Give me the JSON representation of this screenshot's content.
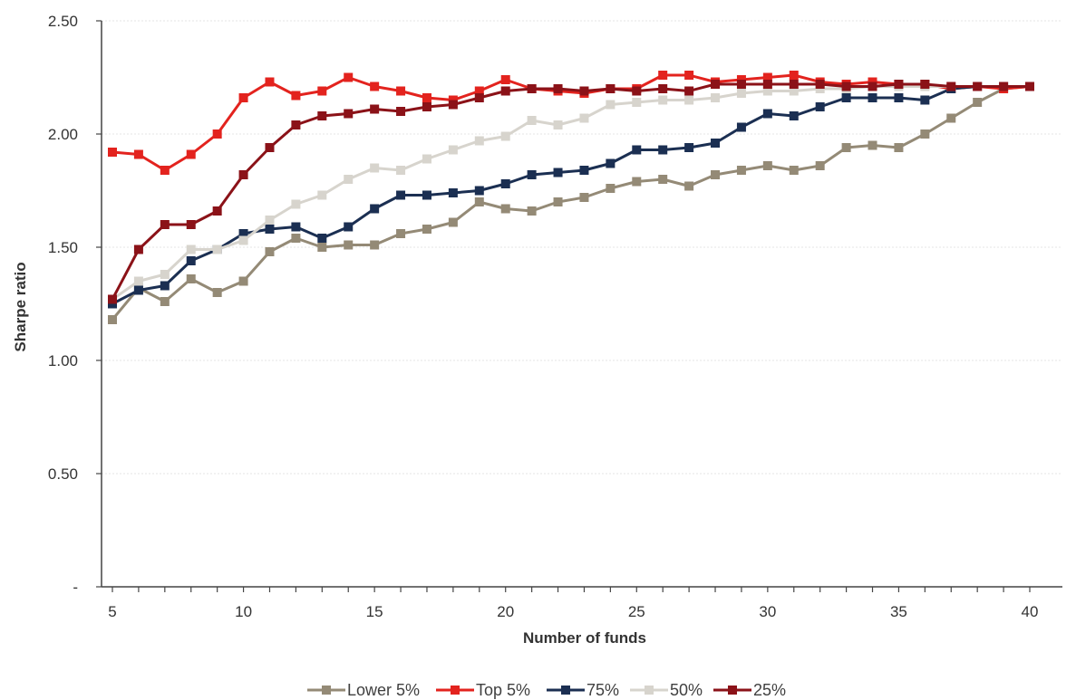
{
  "chart_data": {
    "type": "line",
    "title": "",
    "xlabel": "Number of funds",
    "ylabel": "Sharpe ratio",
    "xlim": [
      5,
      40
    ],
    "ylim": [
      0,
      2.5
    ],
    "x_ticks": [
      5,
      10,
      15,
      20,
      25,
      30,
      35,
      40
    ],
    "x_tick_labels": [
      "5",
      "10",
      "15",
      "20",
      "25",
      "30",
      "35",
      "40"
    ],
    "y_ticks": [
      0,
      0.5,
      1.0,
      1.5,
      2.0,
      2.5
    ],
    "y_tick_labels": [
      "-",
      "0.50",
      "1.00",
      "1.50",
      "2.00",
      "2.50"
    ],
    "grid": true,
    "legend_position": "bottom",
    "x": [
      5,
      6,
      7,
      8,
      9,
      10,
      11,
      12,
      13,
      14,
      15,
      16,
      17,
      18,
      19,
      20,
      21,
      22,
      23,
      24,
      25,
      26,
      27,
      28,
      29,
      30,
      31,
      32,
      33,
      34,
      35,
      36,
      37,
      38,
      39,
      40
    ],
    "series": [
      {
        "name": "Lower 5%",
        "color": "#948a76",
        "values": [
          1.18,
          1.32,
          1.26,
          1.36,
          1.3,
          1.35,
          1.48,
          1.54,
          1.5,
          1.51,
          1.51,
          1.56,
          1.58,
          1.61,
          1.7,
          1.67,
          1.66,
          1.7,
          1.72,
          1.76,
          1.79,
          1.8,
          1.77,
          1.82,
          1.84,
          1.86,
          1.84,
          1.86,
          1.94,
          1.95,
          1.94,
          2.0,
          2.07,
          2.14,
          2.2,
          2.21
        ]
      },
      {
        "name": "Top 5%",
        "color": "#e3231e",
        "values": [
          1.92,
          1.91,
          1.84,
          1.91,
          2.0,
          2.16,
          2.23,
          2.17,
          2.19,
          2.25,
          2.21,
          2.19,
          2.16,
          2.15,
          2.19,
          2.24,
          2.2,
          2.19,
          2.18,
          2.2,
          2.2,
          2.26,
          2.26,
          2.23,
          2.24,
          2.25,
          2.26,
          2.23,
          2.22,
          2.23,
          2.22,
          2.22,
          2.2,
          2.21,
          2.2,
          2.21
        ]
      },
      {
        "name": "75%",
        "color": "#1b2f52",
        "values": [
          1.25,
          1.31,
          1.33,
          1.44,
          1.49,
          1.56,
          1.58,
          1.59,
          1.54,
          1.59,
          1.67,
          1.73,
          1.73,
          1.74,
          1.75,
          1.78,
          1.82,
          1.83,
          1.84,
          1.87,
          1.93,
          1.93,
          1.94,
          1.96,
          2.03,
          2.09,
          2.08,
          2.12,
          2.16,
          2.16,
          2.16,
          2.15,
          2.2,
          2.21,
          2.21,
          2.21
        ]
      },
      {
        "name": "50%",
        "color": "#d7d4cd",
        "values": [
          1.27,
          1.35,
          1.38,
          1.49,
          1.49,
          1.53,
          1.62,
          1.69,
          1.73,
          1.8,
          1.85,
          1.84,
          1.89,
          1.93,
          1.97,
          1.99,
          2.06,
          2.04,
          2.07,
          2.13,
          2.14,
          2.15,
          2.15,
          2.16,
          2.18,
          2.19,
          2.19,
          2.2,
          2.2,
          2.21,
          2.21,
          2.21,
          2.21,
          2.21,
          2.21,
          2.21
        ]
      },
      {
        "name": "25%",
        "color": "#8b1218",
        "values": [
          1.27,
          1.49,
          1.6,
          1.6,
          1.66,
          1.82,
          1.94,
          2.04,
          2.08,
          2.09,
          2.11,
          2.1,
          2.12,
          2.13,
          2.16,
          2.19,
          2.2,
          2.2,
          2.19,
          2.2,
          2.19,
          2.2,
          2.19,
          2.22,
          2.22,
          2.22,
          2.22,
          2.22,
          2.21,
          2.21,
          2.22,
          2.22,
          2.21,
          2.21,
          2.21,
          2.21
        ]
      }
    ]
  }
}
